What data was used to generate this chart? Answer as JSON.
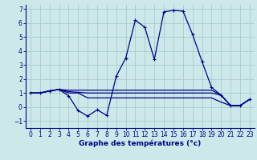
{
  "title": "Graphe des températures (°c)",
  "background_color": "#cce8e8",
  "grid_color": "#aacccc",
  "line_color": "#00008b",
  "xlim": [
    -0.5,
    23.5
  ],
  "ylim": [
    -1.5,
    7.3
  ],
  "yticks": [
    -1,
    0,
    1,
    2,
    3,
    4,
    5,
    6,
    7
  ],
  "xticks": [
    0,
    1,
    2,
    3,
    4,
    5,
    6,
    7,
    8,
    9,
    10,
    11,
    12,
    13,
    14,
    15,
    16,
    17,
    18,
    19,
    20,
    21,
    22,
    23
  ],
  "series": [
    {
      "x": [
        0,
        1,
        2,
        3,
        4,
        5,
        6,
        7,
        8,
        9,
        10,
        11,
        12,
        13,
        14,
        15,
        16,
        17,
        18,
        19,
        20,
        21,
        22,
        23
      ],
      "y": [
        1.0,
        1.0,
        1.15,
        1.25,
        0.8,
        -0.25,
        -0.65,
        -0.2,
        -0.6,
        2.2,
        3.5,
        6.2,
        5.7,
        3.4,
        6.8,
        6.9,
        6.85,
        5.2,
        3.25,
        1.4,
        0.85,
        0.1,
        0.1,
        0.55
      ],
      "marker": "+"
    },
    {
      "x": [
        0,
        1,
        2,
        3,
        4,
        5,
        6,
        7,
        8,
        9,
        10,
        11,
        12,
        13,
        14,
        15,
        16,
        17,
        18,
        19,
        20,
        21,
        22,
        23
      ],
      "y": [
        1.0,
        1.0,
        1.15,
        1.25,
        1.2,
        1.2,
        1.2,
        1.2,
        1.2,
        1.2,
        1.2,
        1.2,
        1.2,
        1.2,
        1.2,
        1.2,
        1.2,
        1.2,
        1.2,
        1.2,
        0.85,
        0.1,
        0.1,
        0.55
      ],
      "marker": null
    },
    {
      "x": [
        0,
        1,
        2,
        3,
        4,
        5,
        6,
        7,
        8,
        9,
        10,
        11,
        12,
        13,
        14,
        15,
        16,
        17,
        18,
        19,
        20,
        21,
        22,
        23
      ],
      "y": [
        1.0,
        1.0,
        1.15,
        1.25,
        1.1,
        1.05,
        1.0,
        1.0,
        1.0,
        1.0,
        1.0,
        1.0,
        1.0,
        1.0,
        1.0,
        1.0,
        1.0,
        1.0,
        1.0,
        1.0,
        0.85,
        0.1,
        0.1,
        0.55
      ],
      "marker": null
    },
    {
      "x": [
        0,
        1,
        2,
        3,
        4,
        5,
        6,
        7,
        8,
        9,
        10,
        11,
        12,
        13,
        14,
        15,
        16,
        17,
        18,
        19,
        20,
        21,
        22,
        23
      ],
      "y": [
        1.0,
        1.0,
        1.15,
        1.25,
        1.0,
        1.0,
        0.65,
        0.65,
        0.65,
        0.65,
        0.65,
        0.65,
        0.65,
        0.65,
        0.65,
        0.65,
        0.65,
        0.65,
        0.65,
        0.65,
        0.35,
        0.1,
        0.1,
        0.55
      ],
      "marker": null
    }
  ]
}
